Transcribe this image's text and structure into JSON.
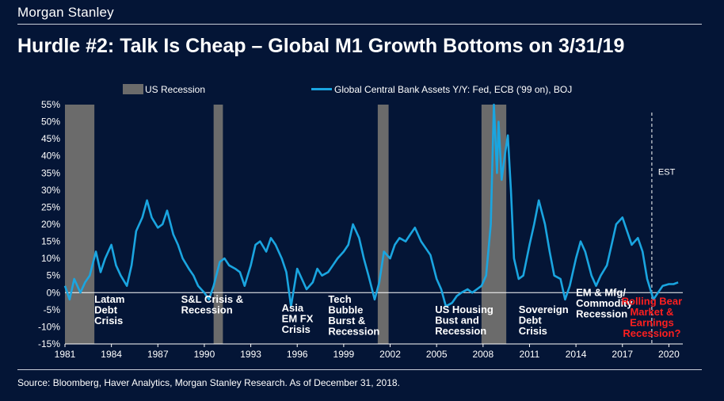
{
  "brand": "Morgan Stanley",
  "title": "Hurdle #2:  Talk Is Cheap – Global M1 Growth Bottoms on 3/31/19",
  "source": "Source: Bloomberg, Haver Analytics, Morgan Stanley Research. As of December 31, 2018.",
  "colors": {
    "background": "#041536",
    "line": "#1aa5e0",
    "recession": "#6b6b6b",
    "text": "#ffffff",
    "alert": "#ff1f1f"
  },
  "chart_data": {
    "type": "line",
    "title": "",
    "xlabel": "",
    "ylabel": "",
    "xlim": [
      1981,
      2020.9
    ],
    "ylim": [
      -0.15,
      0.55
    ],
    "x_ticks": [
      "1981",
      "1984",
      "1987",
      "1990",
      "1993",
      "1996",
      "1999",
      "2002",
      "2005",
      "2008",
      "2011",
      "2014",
      "2017",
      "2020"
    ],
    "y_ticks": [
      "55%",
      "50%",
      "45%",
      "40%",
      "35%",
      "30%",
      "25%",
      "20%",
      "15%",
      "10%",
      "5%",
      "0%",
      "-5%",
      "-10%",
      "-15%"
    ],
    "legend": {
      "placement": "top",
      "recession_label": "US Recession",
      "series_label": "Global Central Bank Assets Y/Y: Fed, ECB ('99 on), BOJ"
    },
    "recessions": [
      {
        "start": 1981.0,
        "end": 1982.9
      },
      {
        "start": 1990.6,
        "end": 1991.2
      },
      {
        "start": 2001.2,
        "end": 2001.9
      },
      {
        "start": 2007.9,
        "end": 2009.5
      }
    ],
    "est_marker": {
      "x": 2018.9,
      "label": "EST"
    },
    "series": [
      {
        "name": "Global Central Bank Assets Y/Y: Fed, ECB ('99 on), BOJ",
        "x": [
          1981.0,
          1981.3,
          1981.6,
          1982.0,
          1982.3,
          1982.6,
          1983.0,
          1983.3,
          1983.6,
          1984.0,
          1984.3,
          1984.6,
          1985.0,
          1985.3,
          1985.6,
          1986.0,
          1986.3,
          1986.6,
          1987.0,
          1987.3,
          1987.6,
          1988.0,
          1988.3,
          1988.6,
          1989.0,
          1989.3,
          1989.6,
          1990.0,
          1990.3,
          1990.6,
          1991.0,
          1991.3,
          1991.6,
          1992.0,
          1992.3,
          1992.6,
          1993.0,
          1993.3,
          1993.6,
          1994.0,
          1994.3,
          1994.6,
          1995.0,
          1995.3,
          1995.6,
          1996.0,
          1996.3,
          1996.6,
          1997.0,
          1997.3,
          1997.6,
          1998.0,
          1998.3,
          1998.6,
          1999.0,
          1999.3,
          1999.6,
          2000.0,
          2000.3,
          2000.6,
          2001.0,
          2001.3,
          2001.6,
          2002.0,
          2002.3,
          2002.6,
          2003.0,
          2003.3,
          2003.6,
          2004.0,
          2004.3,
          2004.6,
          2005.0,
          2005.3,
          2005.6,
          2006.0,
          2006.3,
          2006.6,
          2007.0,
          2007.3,
          2007.6,
          2007.9,
          2008.2,
          2008.5,
          2008.7,
          2008.9,
          2009.0,
          2009.2,
          2009.4,
          2009.6,
          2009.8,
          2010.0,
          2010.3,
          2010.6,
          2011.0,
          2011.3,
          2011.6,
          2012.0,
          2012.3,
          2012.6,
          2013.0,
          2013.3,
          2013.6,
          2014.0,
          2014.3,
          2014.6,
          2015.0,
          2015.3,
          2015.6,
          2016.0,
          2016.3,
          2016.6,
          2017.0,
          2017.3,
          2017.6,
          2018.0,
          2018.3,
          2018.6,
          2019.0,
          2019.3,
          2019.6,
          2020.0,
          2020.3,
          2020.6
        ],
        "y": [
          0.02,
          -0.02,
          0.04,
          0.0,
          0.03,
          0.05,
          0.12,
          0.06,
          0.1,
          0.14,
          0.08,
          0.05,
          0.02,
          0.08,
          0.18,
          0.22,
          0.27,
          0.22,
          0.19,
          0.2,
          0.24,
          0.17,
          0.14,
          0.1,
          0.07,
          0.05,
          0.02,
          0.0,
          -0.02,
          0.02,
          0.09,
          0.1,
          0.08,
          0.07,
          0.06,
          0.02,
          0.08,
          0.14,
          0.15,
          0.12,
          0.16,
          0.14,
          0.1,
          0.06,
          -0.04,
          0.07,
          0.04,
          0.01,
          0.03,
          0.07,
          0.05,
          0.06,
          0.08,
          0.1,
          0.12,
          0.14,
          0.2,
          0.16,
          0.1,
          0.05,
          -0.02,
          0.03,
          0.12,
          0.1,
          0.14,
          0.16,
          0.15,
          0.17,
          0.19,
          0.15,
          0.13,
          0.11,
          0.04,
          0.01,
          -0.04,
          -0.03,
          -0.01,
          0.0,
          0.01,
          0.0,
          0.01,
          0.02,
          0.05,
          0.2,
          0.55,
          0.35,
          0.5,
          0.33,
          0.4,
          0.46,
          0.3,
          0.1,
          0.04,
          0.05,
          0.14,
          0.2,
          0.27,
          0.2,
          0.12,
          0.05,
          0.04,
          -0.02,
          0.02,
          0.1,
          0.15,
          0.12,
          0.05,
          0.02,
          0.05,
          0.08,
          0.14,
          0.2,
          0.22,
          0.18,
          0.14,
          0.16,
          0.12,
          0.04,
          -0.02,
          0.0,
          0.02,
          0.025,
          0.025,
          0.03
        ]
      }
    ],
    "annotations": [
      {
        "x": 1982.9,
        "y": -0.03,
        "lines": [
          "Latam",
          "Debt",
          "Crisis"
        ],
        "color": "#ffffff"
      },
      {
        "x": 1988.5,
        "y": -0.03,
        "lines": [
          "S&L Crisis &",
          "Recession"
        ],
        "color": "#ffffff"
      },
      {
        "x": 1995.0,
        "y": -0.055,
        "lines": [
          "Asia",
          "EM FX",
          "Crisis"
        ],
        "color": "#ffffff"
      },
      {
        "x": 1998.0,
        "y": -0.03,
        "lines": [
          "Tech",
          "Bubble",
          "Burst &",
          "Recession"
        ],
        "color": "#ffffff"
      },
      {
        "x": 2004.9,
        "y": -0.06,
        "lines": [
          "US Housing",
          "Bust and",
          "Recession"
        ],
        "color": "#ffffff"
      },
      {
        "x": 2010.3,
        "y": -0.06,
        "lines": [
          "Sovereign",
          "Debt",
          "Crisis"
        ],
        "color": "#ffffff"
      },
      {
        "x": 2014.0,
        "y": -0.01,
        "lines": [
          "EM & Mfg/",
          "Commodity",
          "Recession"
        ],
        "color": "#ffffff"
      },
      {
        "x": 2018.9,
        "y": -0.035,
        "lines": [
          "Rolling Bear",
          "Market &",
          "Earnings",
          "Recession?"
        ],
        "color": "#ff1f1f",
        "align": "center"
      }
    ]
  }
}
